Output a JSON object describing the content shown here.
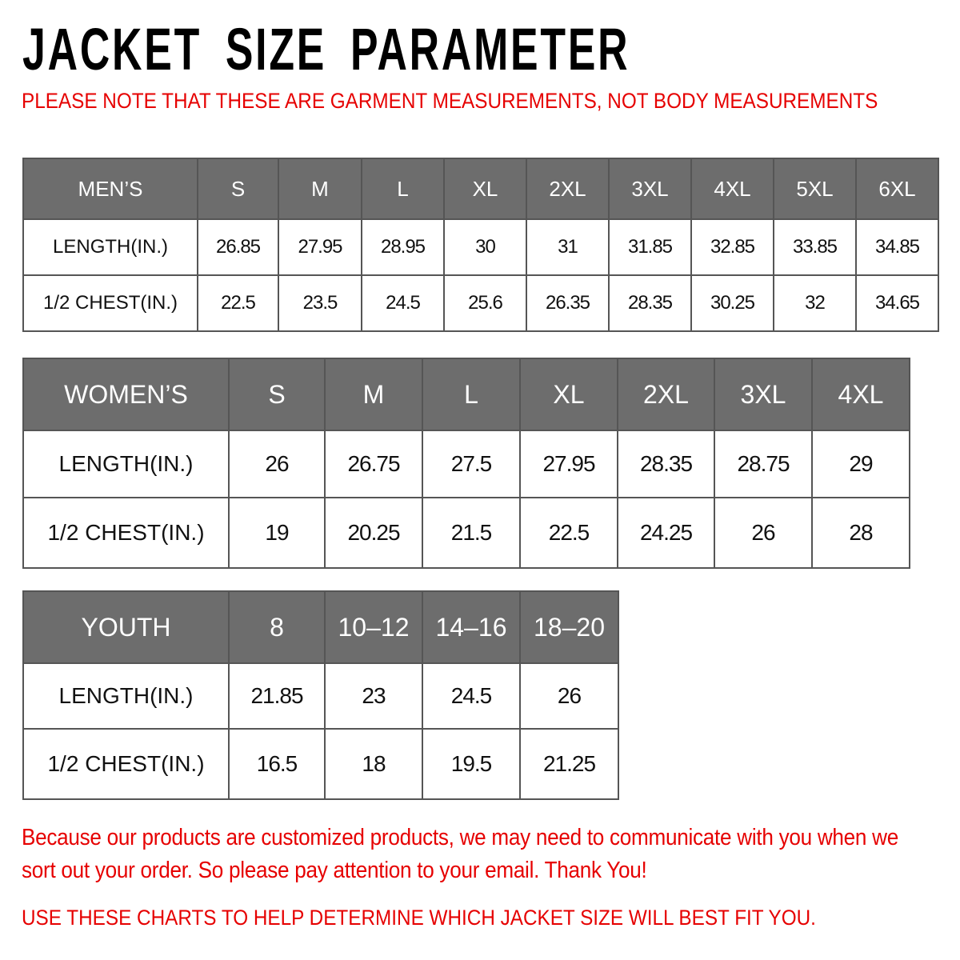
{
  "title": "JACKET SIZE PARAMETER",
  "note": "PLEASE NOTE THAT THESE ARE GARMENT MEASUREMENTS, NOT BODY MEASUREMENTS",
  "colors": {
    "header_bg": "#6d6d6d",
    "accent_red": "#e60000"
  },
  "tables": {
    "men": {
      "label": "MEN’S",
      "sizes": [
        "S",
        "M",
        "L",
        "XL",
        "2XL",
        "3XL",
        "4XL",
        "5XL",
        "6XL"
      ],
      "rows": [
        {
          "label": "LENGTH(IN.)",
          "values": [
            "26.85",
            "27.95",
            "28.95",
            "30",
            "31",
            "31.85",
            "32.85",
            "33.85",
            "34.85"
          ]
        },
        {
          "label": "1/2 CHEST(IN.)",
          "values": [
            "22.5",
            "23.5",
            "24.5",
            "25.6",
            "26.35",
            "28.35",
            "30.25",
            "32",
            "34.65"
          ]
        }
      ]
    },
    "women": {
      "label": "WOMEN’S",
      "sizes": [
        "S",
        "M",
        "L",
        "XL",
        "2XL",
        "3XL",
        "4XL"
      ],
      "rows": [
        {
          "label": "LENGTH(IN.)",
          "values": [
            "26",
            "26.75",
            "27.5",
            "27.95",
            "28.35",
            "28.75",
            "29"
          ]
        },
        {
          "label": "1/2 CHEST(IN.)",
          "values": [
            "19",
            "20.25",
            "21.5",
            "22.5",
            "24.25",
            "26",
            "28"
          ]
        }
      ]
    },
    "youth": {
      "label": "YOUTH",
      "sizes": [
        "8",
        "10–12",
        "14–16",
        "18–20"
      ],
      "rows": [
        {
          "label": "LENGTH(IN.)",
          "values": [
            "21.85",
            "23",
            "24.5",
            "26"
          ]
        },
        {
          "label": "1/2 CHEST(IN.)",
          "values": [
            "16.5",
            "18",
            "19.5",
            "21.25"
          ]
        }
      ]
    }
  },
  "footer": {
    "message": "Because our products are customized products, we may need to communicate with you when we sort out your order. So please pay attention to your email. Thank You!",
    "advice": "USE THESE CHARTS TO HELP DETERMINE WHICH JACKET SIZE WILL BEST FIT YOU."
  }
}
